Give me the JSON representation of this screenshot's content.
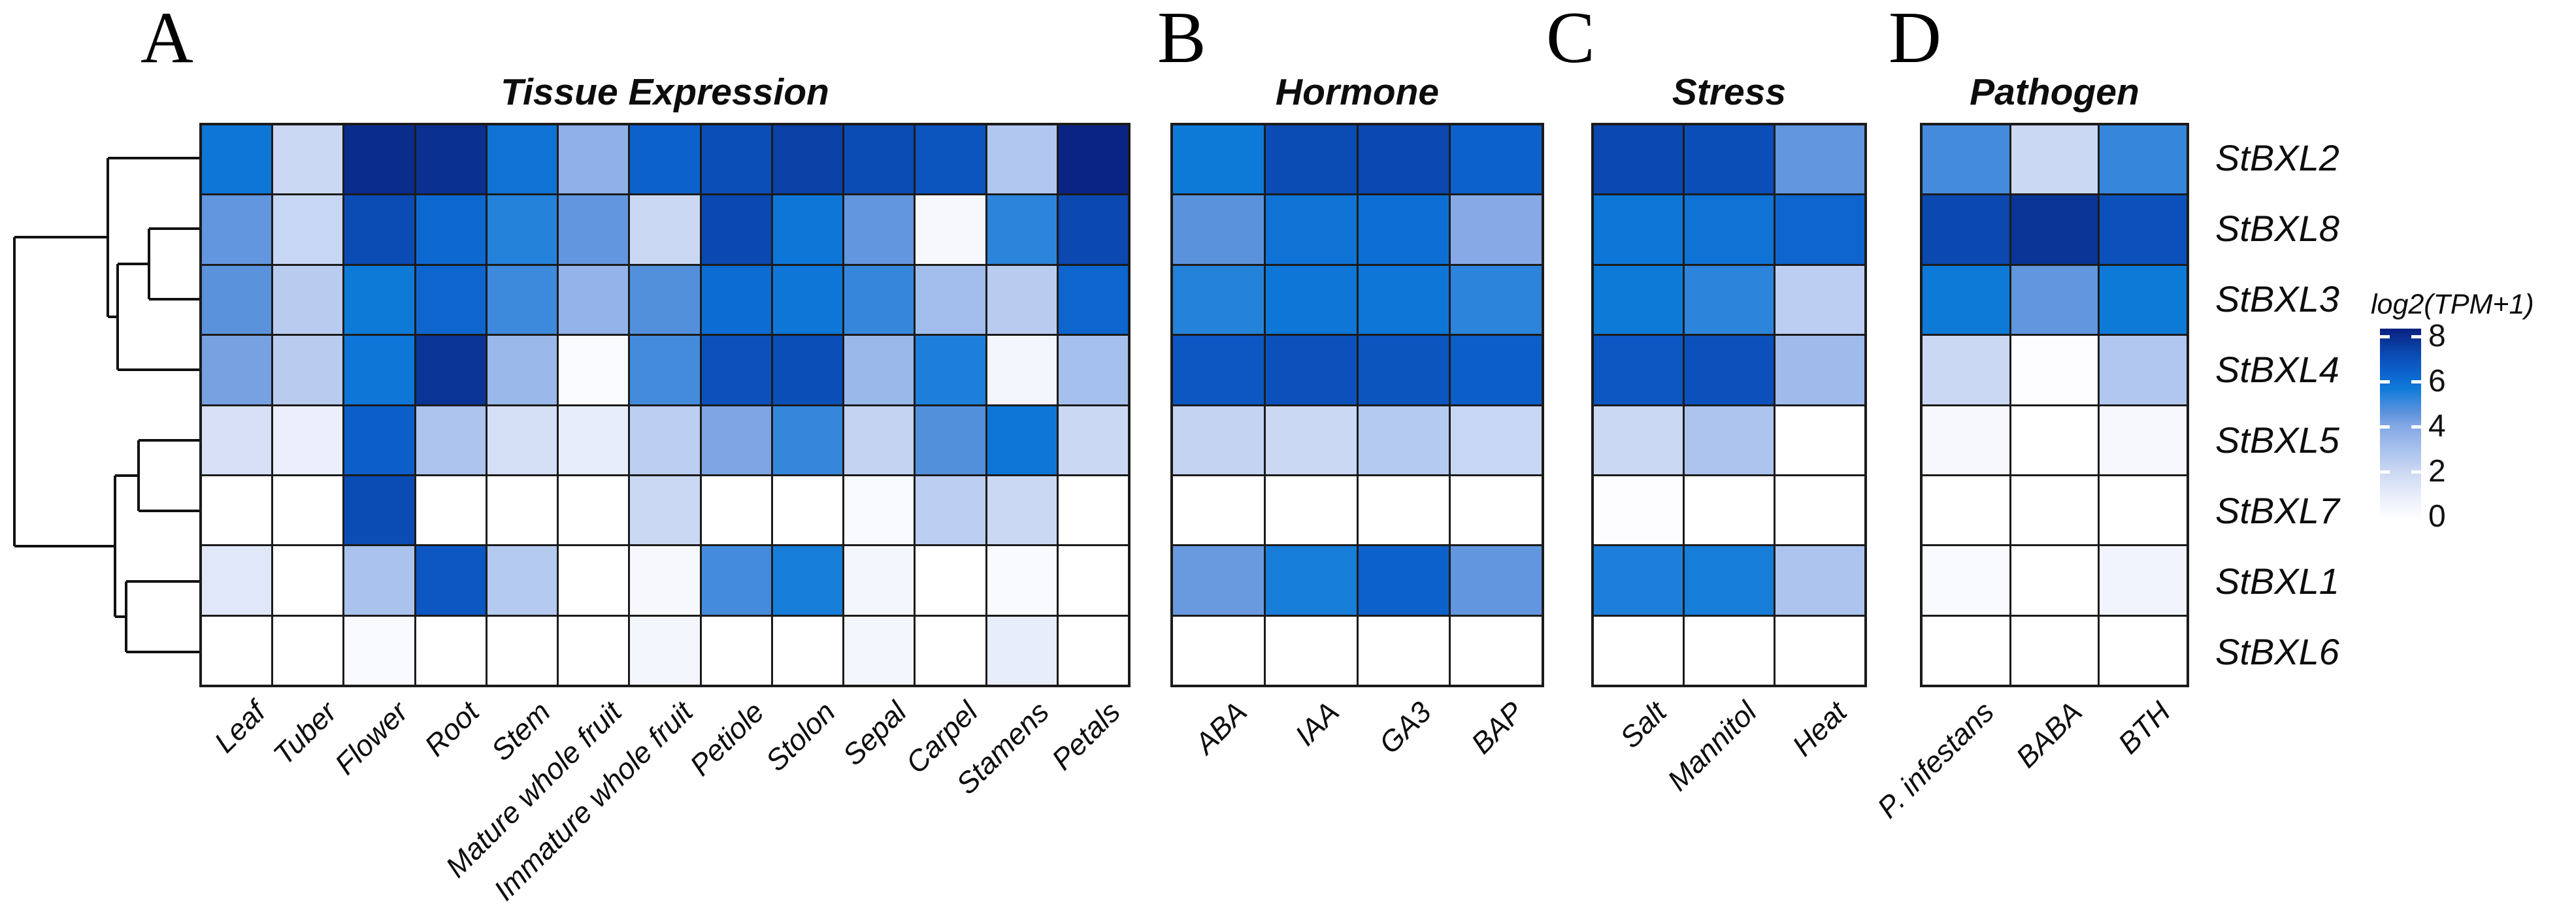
{
  "chart_data": {
    "type": "heatmap",
    "title": "",
    "row_labels": [
      "StBXL2",
      "StBXL8",
      "StBXL3",
      "StBXL4",
      "StBXL5",
      "StBXL7",
      "StBXL1",
      "StBXL6"
    ],
    "colorbar": {
      "title": "log2(TPM+1)",
      "ticks": [
        8,
        6,
        4,
        2,
        0
      ],
      "min": 0,
      "max": 8
    },
    "color_scale": {
      "stops": [
        [
          0,
          "#FFFFFF"
        ],
        [
          1,
          "#E8EDFA"
        ],
        [
          2,
          "#CBD8F3"
        ],
        [
          3,
          "#A6C0ED"
        ],
        [
          4,
          "#7FA5E4"
        ],
        [
          4.5,
          "#5B92DC"
        ],
        [
          5,
          "#3587DC"
        ],
        [
          5.5,
          "#0E7AD8"
        ],
        [
          6,
          "#0D68D0"
        ],
        [
          6.5,
          "#0C57C2"
        ],
        [
          7,
          "#0B48B0"
        ],
        [
          7.5,
          "#0A3596"
        ],
        [
          8,
          "#0A2080"
        ]
      ]
    },
    "grid_line_color": "#1b1b1b",
    "panels": [
      {
        "label": "A",
        "title": "Tissue Expression",
        "categories": [
          "Leaf",
          "Tuber",
          "Flower",
          "Root",
          "Stem",
          "Mature whole fruit",
          "Immature whole fruit",
          "Petiole",
          "Stolon",
          "Sepal",
          "Carpel",
          "Stamens",
          "Petals"
        ],
        "values": [
          [
            5.6,
            2.0,
            7.7,
            7.6,
            5.7,
            3.6,
            6.2,
            6.8,
            7.2,
            6.9,
            6.6,
            2.7,
            7.9
          ],
          [
            4.4,
            2.1,
            6.9,
            6.0,
            5.2,
            4.4,
            2.0,
            7.0,
            5.6,
            4.4,
            0.4,
            5.1,
            7.0
          ],
          [
            4.5,
            2.5,
            5.5,
            6.1,
            4.9,
            3.5,
            4.6,
            5.9,
            5.6,
            5.0,
            3.1,
            2.5,
            6.1
          ],
          [
            4.1,
            2.5,
            5.6,
            7.5,
            3.3,
            0.2,
            4.8,
            6.7,
            6.8,
            3.3,
            5.3,
            0.5,
            3.0
          ],
          [
            1.6,
            0.9,
            6.3,
            2.8,
            1.7,
            1.0,
            2.4,
            4.0,
            5.0,
            2.2,
            4.6,
            5.6,
            2.0
          ],
          [
            0.0,
            0.0,
            6.9,
            0.0,
            0.0,
            0.0,
            2.0,
            0.0,
            0.0,
            0.3,
            2.4,
            2.0,
            0.0
          ],
          [
            1.3,
            0.0,
            2.9,
            6.5,
            2.6,
            0.0,
            0.4,
            4.8,
            5.4,
            0.5,
            0.0,
            0.3,
            0.0
          ],
          [
            0.0,
            0.0,
            0.3,
            0.0,
            0.0,
            0.0,
            0.5,
            0.0,
            0.0,
            0.5,
            0.0,
            1.0,
            0.0
          ]
        ]
      },
      {
        "label": "B",
        "title": "Hormone",
        "categories": [
          "ABA",
          "IAA",
          "GA3",
          "BAP"
        ],
        "values": [
          [
            5.5,
            6.9,
            7.0,
            6.2
          ],
          [
            4.5,
            5.7,
            5.8,
            3.8
          ],
          [
            5.2,
            5.6,
            5.6,
            5.1
          ],
          [
            6.5,
            6.7,
            6.6,
            6.3
          ],
          [
            2.2,
            2.0,
            2.6,
            2.1
          ],
          [
            0.0,
            0.0,
            0.0,
            0.0
          ],
          [
            4.3,
            5.4,
            6.2,
            4.4
          ],
          [
            0.0,
            0.0,
            0.0,
            0.0
          ]
        ]
      },
      {
        "label": "C",
        "title": "Stress",
        "categories": [
          "Salt",
          "Mannitol",
          "Heat"
        ],
        "values": [
          [
            7.0,
            6.8,
            4.4
          ],
          [
            5.6,
            5.7,
            6.1
          ],
          [
            5.5,
            5.1,
            2.4
          ],
          [
            6.5,
            6.7,
            3.2
          ],
          [
            2.0,
            2.8,
            0.0
          ],
          [
            0.1,
            0.0,
            0.0
          ],
          [
            5.3,
            5.4,
            2.8
          ],
          [
            0.0,
            0.0,
            0.0
          ]
        ]
      },
      {
        "label": "D",
        "title": "Pathogen",
        "categories": [
          "P. infestans",
          "BABA",
          "BTH"
        ],
        "values": [
          [
            4.8,
            2.0,
            5.0
          ],
          [
            7.0,
            7.5,
            6.7
          ],
          [
            5.5,
            4.4,
            5.5
          ],
          [
            2.0,
            0.1,
            2.7
          ],
          [
            0.4,
            0.0,
            0.4
          ],
          [
            0.0,
            0.0,
            0.0
          ],
          [
            0.3,
            0.0,
            0.6
          ],
          [
            0.0,
            0.0,
            0.0
          ]
        ]
      }
    ]
  }
}
